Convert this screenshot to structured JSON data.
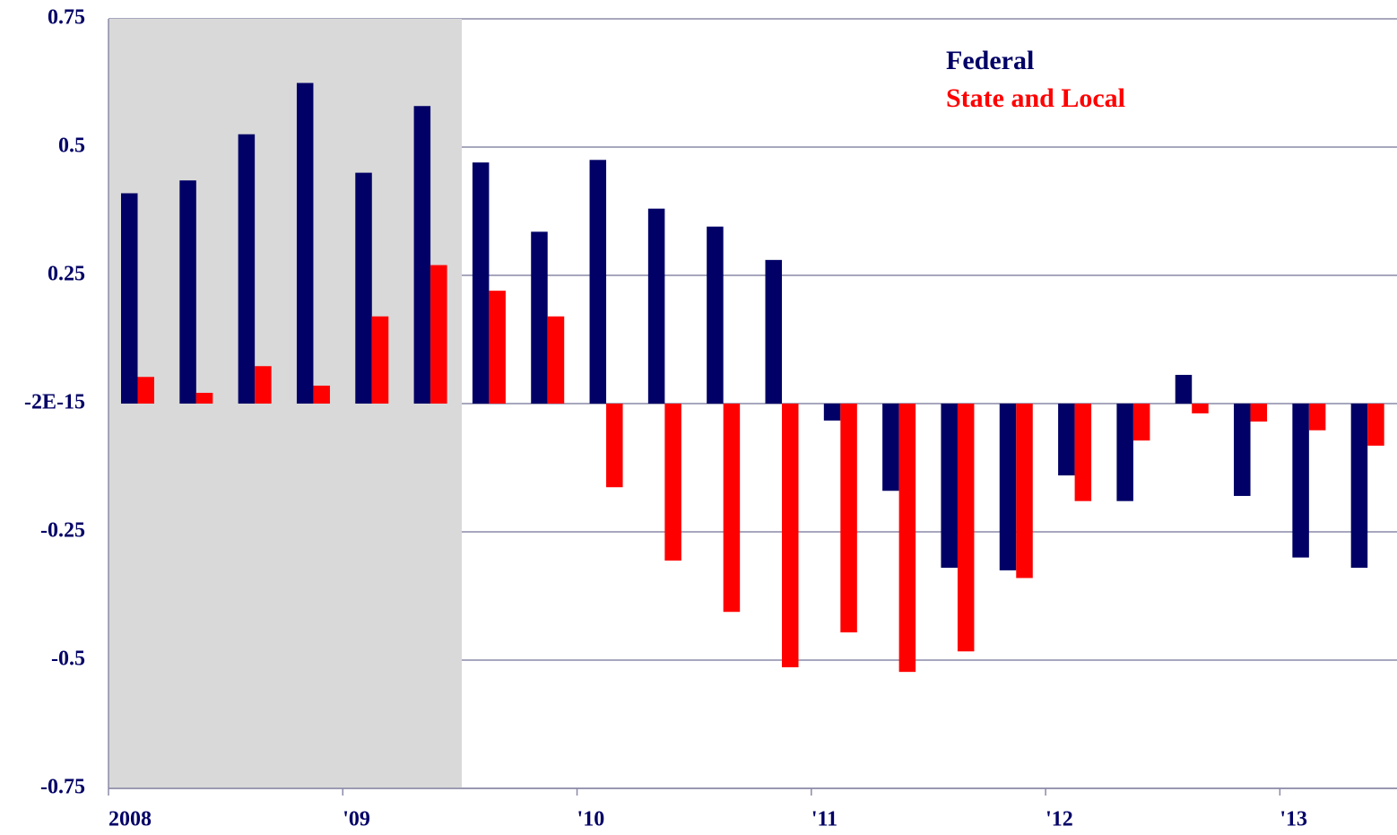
{
  "chart_data": {
    "type": "bar",
    "categories": [
      "2008",
      null,
      null,
      null,
      "'09",
      null,
      null,
      null,
      "'10",
      null,
      null,
      null,
      "'11",
      null,
      null,
      null,
      "'12",
      null,
      null,
      null,
      "'13",
      null
    ],
    "series": [
      {
        "name": "Federal",
        "color": "#000066",
        "values": [
          0.41,
          0.435,
          0.525,
          0.625,
          0.45,
          0.58,
          0.47,
          0.335,
          0.475,
          0.38,
          0.345,
          0.28,
          -0.033,
          -0.17,
          -0.32,
          -0.325,
          -0.14,
          -0.19,
          0.056,
          -0.18,
          -0.3,
          -0.32
        ]
      },
      {
        "name": "State and Local",
        "color": "#ff0000",
        "values": [
          0.052,
          0.021,
          0.073,
          0.035,
          0.17,
          0.27,
          0.22,
          0.17,
          -0.163,
          -0.306,
          -0.406,
          -0.514,
          -0.446,
          -0.523,
          -0.483,
          -0.34,
          -0.19,
          -0.072,
          -0.019,
          -0.035,
          -0.052,
          -0.082
        ]
      }
    ],
    "ylim": [
      -0.75,
      0.75
    ],
    "yticks": [
      0.75,
      0.5,
      0.25,
      {
        "value": 0,
        "label": "-2E-15"
      },
      -0.25,
      -0.5,
      -0.75
    ],
    "grid": true
  }
}
